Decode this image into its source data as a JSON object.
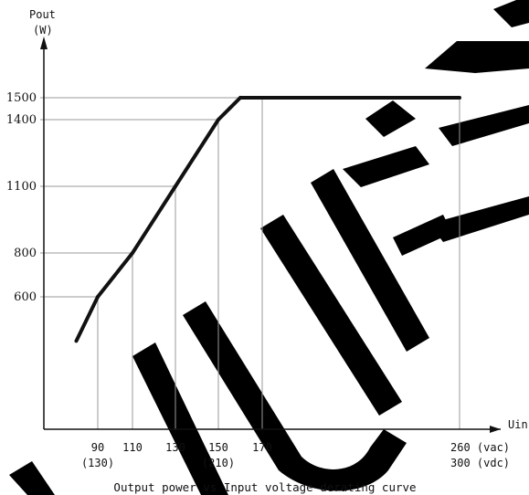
{
  "chart_data": {
    "type": "line",
    "title": "Output power vs Input voltage derating curve",
    "ylabel_line1": "Pout",
    "ylabel_line2": "(W)",
    "xlabel": "Uin",
    "x_ticks": [
      {
        "value": 90,
        "label": "90",
        "sub": "(130)"
      },
      {
        "value": 110,
        "label": "110",
        "sub": ""
      },
      {
        "value": 130,
        "label": "130",
        "sub": ""
      },
      {
        "value": 150,
        "label": "150",
        "sub": "(210)"
      },
      {
        "value": 170,
        "label": "170",
        "sub": ""
      },
      {
        "value": 260,
        "label": "260 (vac)",
        "sub": "300 (vdc)"
      }
    ],
    "y_ticks": [
      600,
      800,
      1100,
      1400,
      1500
    ],
    "series": [
      {
        "x": [
          80,
          90,
          110,
          130,
          150,
          160,
          260
        ],
        "y": [
          400,
          600,
          800,
          1100,
          1400,
          1500,
          1500
        ]
      }
    ],
    "xlim": [
      70,
      285
    ],
    "ylim": [
      0,
      1800
    ],
    "grid": "drop-lines",
    "watermark": "NUED"
  }
}
